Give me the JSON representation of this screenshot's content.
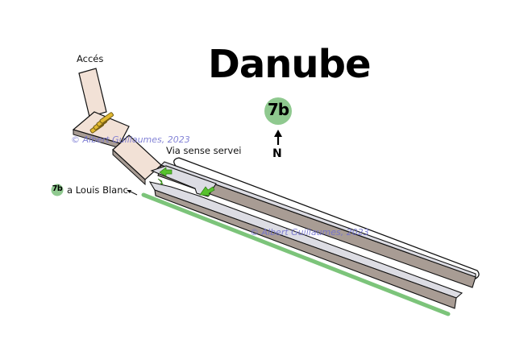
{
  "station": {
    "name": "Danube",
    "line": "7b",
    "line_color": "#8fc98f",
    "direction_marker": "N"
  },
  "labels": {
    "access": "Accés",
    "service_track": "Via sense servei",
    "destination_line": "7b",
    "destination": "a Louis Blanc"
  },
  "watermarks": [
    "© Albert Guillaumes, 2023",
    "© Albert Guillaumes, 2023"
  ],
  "colors": {
    "platform_top": "#dcdce3",
    "platform_side": "#a89c94",
    "corridor_fill": "#f2e1d6",
    "stairs": "#e0b832",
    "arrow_green": "#57c22e",
    "track_line": "#7cc47a"
  },
  "icons": [
    "north-arrow-icon",
    "stairs-icon",
    "direction-arrow-icon"
  ]
}
